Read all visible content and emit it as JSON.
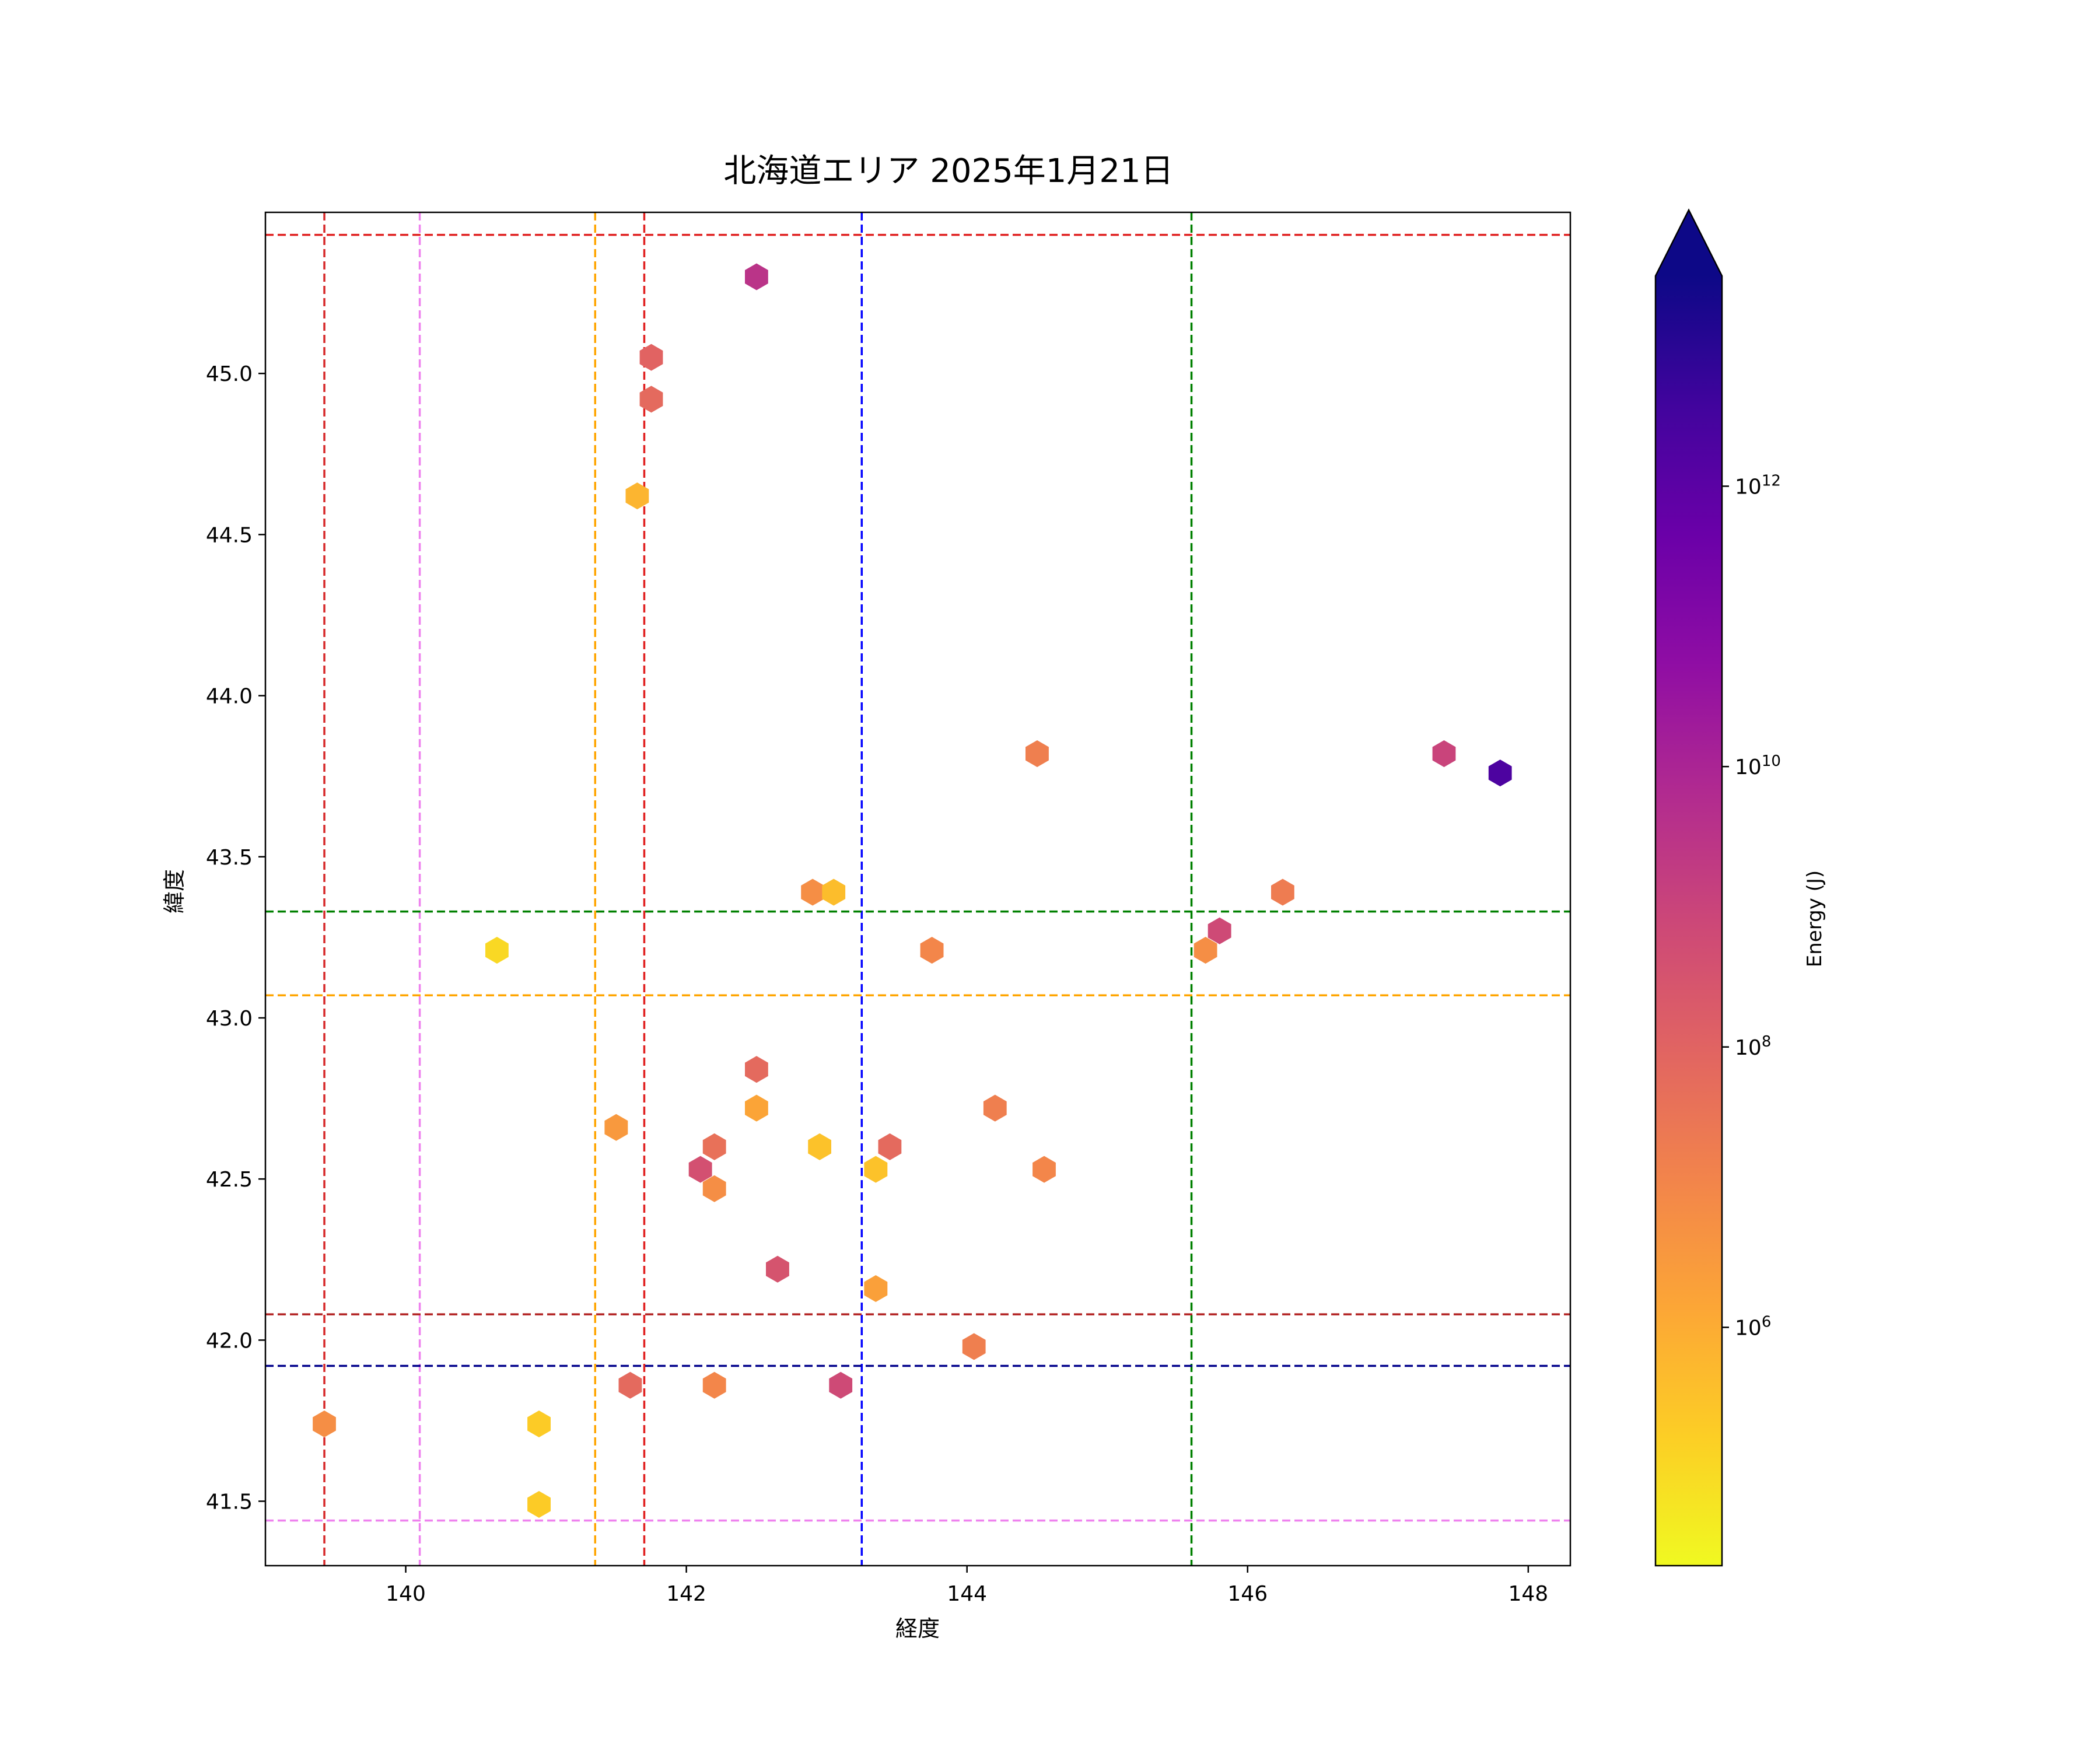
{
  "chart_data": {
    "type": "scatter",
    "marker": "hexagon",
    "title": "北海道エリア 2025年1月21日",
    "xlabel": "経度",
    "ylabel": "緯度",
    "xlim": [
      139.0,
      148.3
    ],
    "ylim": [
      41.3,
      45.5
    ],
    "x_ticks": [
      140,
      142,
      144,
      146,
      148
    ],
    "x_tick_labels": [
      "140",
      "142",
      "144",
      "146",
      "148"
    ],
    "y_ticks": [
      41.5,
      42.0,
      42.5,
      43.0,
      43.5,
      44.0,
      44.5,
      45.0
    ],
    "y_tick_labels": [
      "41.5",
      "42.0",
      "42.5",
      "43.0",
      "43.5",
      "44.0",
      "44.5",
      "45.0"
    ],
    "grid": false,
    "colorbar": {
      "label": "Energy (J)",
      "scale": "log",
      "colormap": "plasma_r",
      "extend": "max",
      "range_log10": [
        4.3,
        13.5
      ],
      "ticks_log10": [
        6,
        8,
        10,
        12
      ],
      "tick_labels": [
        {
          "base": "10",
          "exp": "6"
        },
        {
          "base": "10",
          "exp": "8"
        },
        {
          "base": "10",
          "exp": "10"
        },
        {
          "base": "10",
          "exp": "12"
        }
      ]
    },
    "reference_lines": {
      "vertical": [
        {
          "x": 139.42,
          "color": "#d62728"
        },
        {
          "x": 140.1,
          "color": "#ee82ee"
        },
        {
          "x": 141.35,
          "color": "#ffa500"
        },
        {
          "x": 141.7,
          "color": "#e02020"
        },
        {
          "x": 143.25,
          "color": "#0000ff"
        },
        {
          "x": 145.6,
          "color": "#008000"
        }
      ],
      "horizontal": [
        {
          "y": 45.43,
          "color": "#e02020"
        },
        {
          "y": 43.33,
          "color": "#008000"
        },
        {
          "y": 43.07,
          "color": "#ffa500"
        },
        {
          "y": 42.08,
          "color": "#b22222"
        },
        {
          "y": 41.92,
          "color": "#00008b"
        },
        {
          "y": 41.44,
          "color": "#ee82ee"
        }
      ]
    },
    "points": [
      {
        "lon": 142.5,
        "lat": 45.3,
        "energy_log10": 9.5
      },
      {
        "lon": 141.75,
        "lat": 45.05,
        "energy_log10": 8.0
      },
      {
        "lon": 141.75,
        "lat": 44.92,
        "energy_log10": 7.8
      },
      {
        "lon": 141.65,
        "lat": 44.62,
        "energy_log10": 5.8
      },
      {
        "lon": 144.5,
        "lat": 43.82,
        "energy_log10": 7.2
      },
      {
        "lon": 147.4,
        "lat": 43.82,
        "energy_log10": 9.0
      },
      {
        "lon": 147.8,
        "lat": 43.76,
        "energy_log10": 12.3
      },
      {
        "lon": 142.9,
        "lat": 43.39,
        "energy_log10": 6.8
      },
      {
        "lon": 143.05,
        "lat": 43.39,
        "energy_log10": 5.6
      },
      {
        "lon": 146.25,
        "lat": 43.39,
        "energy_log10": 7.3
      },
      {
        "lon": 140.65,
        "lat": 43.21,
        "energy_log10": 5.0
      },
      {
        "lon": 143.75,
        "lat": 43.21,
        "energy_log10": 7.0
      },
      {
        "lon": 145.7,
        "lat": 43.21,
        "energy_log10": 6.8
      },
      {
        "lon": 145.8,
        "lat": 43.27,
        "energy_log10": 8.8
      },
      {
        "lon": 142.5,
        "lat": 42.84,
        "energy_log10": 7.8
      },
      {
        "lon": 142.5,
        "lat": 42.72,
        "energy_log10": 6.2
      },
      {
        "lon": 141.5,
        "lat": 42.66,
        "energy_log10": 6.5
      },
      {
        "lon": 144.2,
        "lat": 42.72,
        "energy_log10": 7.2
      },
      {
        "lon": 142.2,
        "lat": 42.6,
        "energy_log10": 7.6
      },
      {
        "lon": 142.95,
        "lat": 42.6,
        "energy_log10": 5.5
      },
      {
        "lon": 143.45,
        "lat": 42.6,
        "energy_log10": 7.8
      },
      {
        "lon": 142.1,
        "lat": 42.53,
        "energy_log10": 8.6
      },
      {
        "lon": 143.35,
        "lat": 42.53,
        "energy_log10": 5.5
      },
      {
        "lon": 144.55,
        "lat": 42.53,
        "energy_log10": 7.0
      },
      {
        "lon": 142.2,
        "lat": 42.47,
        "energy_log10": 6.8
      },
      {
        "lon": 142.65,
        "lat": 42.22,
        "energy_log10": 8.5
      },
      {
        "lon": 143.35,
        "lat": 42.16,
        "energy_log10": 6.3
      },
      {
        "lon": 144.05,
        "lat": 41.98,
        "energy_log10": 7.2
      },
      {
        "lon": 141.6,
        "lat": 41.86,
        "energy_log10": 7.8
      },
      {
        "lon": 142.2,
        "lat": 41.86,
        "energy_log10": 7.0
      },
      {
        "lon": 143.1,
        "lat": 41.86,
        "energy_log10": 8.8
      },
      {
        "lon": 139.42,
        "lat": 41.74,
        "energy_log10": 6.8
      },
      {
        "lon": 140.95,
        "lat": 41.74,
        "energy_log10": 5.3
      },
      {
        "lon": 140.95,
        "lat": 41.49,
        "energy_log10": 5.3
      }
    ]
  }
}
